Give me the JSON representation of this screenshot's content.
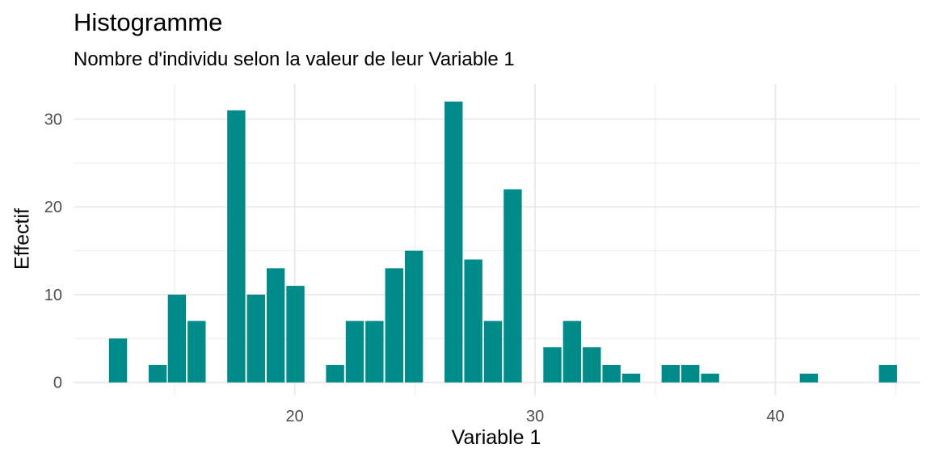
{
  "chart_data": {
    "type": "bar",
    "title": "Histogramme",
    "subtitle": "Nombre d'individu selon la valeur de leur Variable 1",
    "xlabel": "Variable 1",
    "ylabel": "Effectif",
    "bar_color": "#008B8B",
    "grid_color": "#EBEBEB",
    "grid": true,
    "xlim": [
      10.8,
      46.0
    ],
    "ylim": [
      -1.5,
      34.0
    ],
    "bin_width": 0.82,
    "x_ticks": [
      20,
      30,
      40
    ],
    "y_ticks": [
      0,
      10,
      20,
      30
    ],
    "bins": [
      {
        "x": 12.65,
        "count": 5
      },
      {
        "x": 14.3,
        "count": 2
      },
      {
        "x": 15.1,
        "count": 10
      },
      {
        "x": 15.92,
        "count": 7
      },
      {
        "x": 17.57,
        "count": 31
      },
      {
        "x": 18.39,
        "count": 10
      },
      {
        "x": 19.21,
        "count": 13
      },
      {
        "x": 20.03,
        "count": 11
      },
      {
        "x": 21.68,
        "count": 2
      },
      {
        "x": 22.5,
        "count": 7
      },
      {
        "x": 23.32,
        "count": 7
      },
      {
        "x": 24.14,
        "count": 13
      },
      {
        "x": 24.96,
        "count": 15
      },
      {
        "x": 26.61,
        "count": 32
      },
      {
        "x": 27.43,
        "count": 14
      },
      {
        "x": 28.25,
        "count": 7
      },
      {
        "x": 29.07,
        "count": 22
      },
      {
        "x": 30.72,
        "count": 4
      },
      {
        "x": 31.54,
        "count": 7
      },
      {
        "x": 32.36,
        "count": 4
      },
      {
        "x": 33.18,
        "count": 2
      },
      {
        "x": 34.0,
        "count": 1
      },
      {
        "x": 35.64,
        "count": 2
      },
      {
        "x": 36.46,
        "count": 2
      },
      {
        "x": 37.28,
        "count": 1
      },
      {
        "x": 41.39,
        "count": 1
      },
      {
        "x": 44.68,
        "count": 2
      }
    ]
  }
}
